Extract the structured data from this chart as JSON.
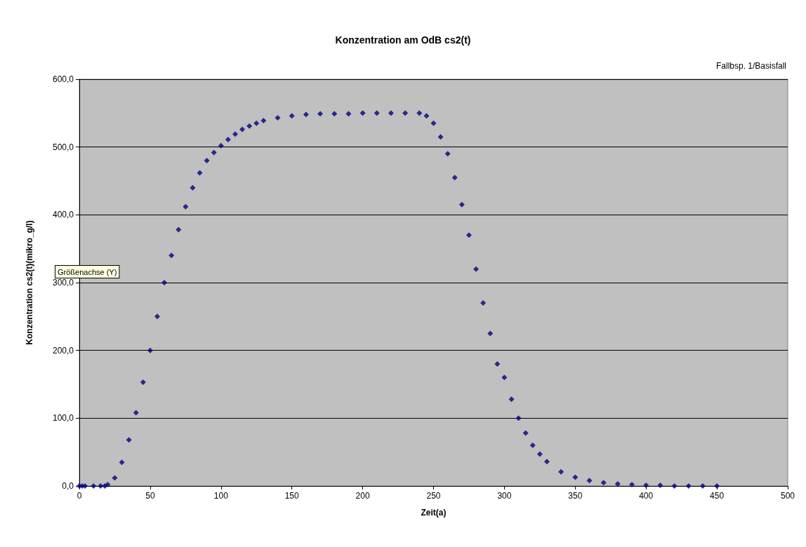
{
  "chart_data": {
    "type": "scatter",
    "title": "Konzentration am OdB cs2(t)",
    "xlabel": "Zeit(a)",
    "ylabel": "Konzentration cs2(t)(mikro_g/l)",
    "annotations": [
      "Fallbsp. 1/Basisfall",
      "Größenachse (Y)"
    ],
    "x": [
      0,
      2,
      4,
      10,
      15,
      18,
      20,
      25,
      30,
      35,
      40,
      45,
      50,
      55,
      60,
      65,
      70,
      75,
      80,
      85,
      90,
      95,
      100,
      105,
      110,
      115,
      120,
      125,
      130,
      140,
      150,
      160,
      170,
      180,
      190,
      200,
      210,
      220,
      230,
      240,
      245,
      250,
      255,
      260,
      265,
      270,
      275,
      280,
      285,
      290,
      295,
      300,
      305,
      310,
      315,
      320,
      325,
      330,
      340,
      350,
      360,
      370,
      380,
      390,
      400,
      410,
      420,
      430,
      440,
      450
    ],
    "series": [
      {
        "color": "#000080",
        "values": [
          0,
          0,
          0,
          0,
          0,
          0,
          2,
          12,
          35,
          68,
          108,
          153,
          200,
          250,
          300,
          340,
          378,
          412,
          440,
          462,
          480,
          492,
          502,
          511,
          519,
          526,
          531,
          535,
          539,
          543,
          546,
          548,
          549,
          549,
          549,
          550,
          550,
          550,
          550,
          550,
          546,
          535,
          515,
          490,
          455,
          415,
          370,
          320,
          270,
          225,
          180,
          160,
          128,
          100,
          78,
          60,
          47,
          36,
          21,
          13,
          8,
          5,
          3,
          2,
          1,
          1,
          0,
          0,
          0,
          0
        ]
      }
    ],
    "xlim": [
      0,
      500
    ],
    "xticks": [
      0,
      50,
      100,
      150,
      200,
      250,
      300,
      350,
      400,
      450,
      500
    ],
    "ylim": [
      0,
      600
    ],
    "yticks": [
      {
        "value": 0,
        "label": "0,0"
      },
      {
        "value": 100,
        "label": "100,0"
      },
      {
        "value": 200,
        "label": "200,0"
      },
      {
        "value": 300,
        "label": "300,0"
      },
      {
        "value": 400,
        "label": "400,0"
      },
      {
        "value": 500,
        "label": "500,0"
      },
      {
        "value": 600,
        "label": "600,0"
      }
    ],
    "grid": "y",
    "marker": "diamond"
  }
}
